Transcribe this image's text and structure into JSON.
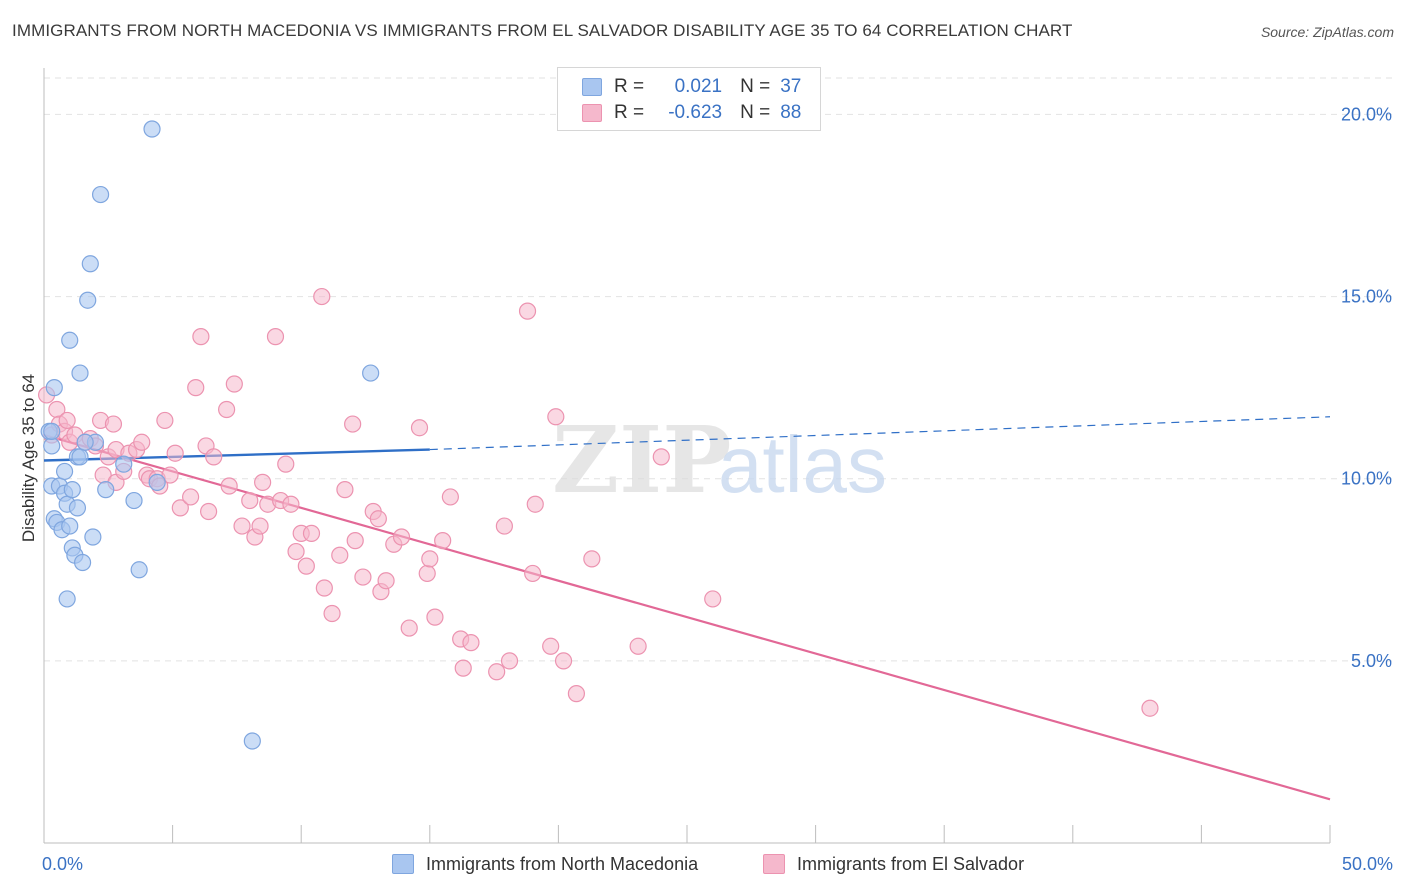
{
  "title": "IMMIGRANTS FROM NORTH MACEDONIA VS IMMIGRANTS FROM EL SALVADOR DISABILITY AGE 35 TO 64 CORRELATION CHART",
  "source": "Source: ZipAtlas.com",
  "legend": {
    "r_label": "R =",
    "n_label": "N =",
    "rows": [
      {
        "r": "0.021",
        "n": "37"
      },
      {
        "r": "-0.623",
        "n": "88"
      }
    ]
  },
  "colors": {
    "blue_fill": "#a9c6f0",
    "blue_stroke": "#7fa6df",
    "blue_line": "#2f6fc7",
    "pink_fill": "#f5b8cc",
    "pink_stroke": "#ec93b0",
    "pink_line": "#e26896",
    "axis_label": "#3a72c4",
    "grid": "#e2e2e2"
  },
  "chart_data": {
    "type": "scatter",
    "ylabel": "Disability Age 35 to 64",
    "xlim": [
      0,
      50
    ],
    "ylim": [
      0,
      21
    ],
    "x_ticks": [
      {
        "value": 0,
        "label": "0.0%"
      },
      {
        "value": 50,
        "label": "50.0%"
      }
    ],
    "y_ticks": [
      {
        "value": 5,
        "label": "5.0%"
      },
      {
        "value": 10,
        "label": "10.0%"
      },
      {
        "value": 15,
        "label": "15.0%"
      },
      {
        "value": 20,
        "label": "20.0%"
      }
    ],
    "watermark": "ZIPatlas",
    "series": [
      {
        "name": "Immigrants from North Macedonia",
        "color": "blue",
        "points": [
          [
            0.2,
            11.3
          ],
          [
            0.3,
            9.8
          ],
          [
            0.3,
            10.9
          ],
          [
            0.3,
            11.3
          ],
          [
            0.4,
            12.5
          ],
          [
            0.4,
            8.9
          ],
          [
            0.5,
            8.8
          ],
          [
            0.6,
            9.8
          ],
          [
            0.7,
            8.6
          ],
          [
            0.8,
            10.2
          ],
          [
            0.8,
            9.6
          ],
          [
            0.9,
            9.3
          ],
          [
            0.9,
            6.7
          ],
          [
            1.0,
            13.8
          ],
          [
            1.0,
            8.7
          ],
          [
            1.1,
            9.7
          ],
          [
            1.1,
            8.1
          ],
          [
            1.2,
            7.9
          ],
          [
            1.3,
            10.6
          ],
          [
            1.3,
            9.2
          ],
          [
            1.4,
            10.6
          ],
          [
            1.4,
            12.9
          ],
          [
            1.5,
            7.7
          ],
          [
            1.7,
            14.9
          ],
          [
            1.8,
            15.9
          ],
          [
            1.9,
            8.4
          ],
          [
            2.0,
            11.0
          ],
          [
            2.2,
            17.8
          ],
          [
            2.4,
            9.7
          ],
          [
            3.1,
            10.4
          ],
          [
            3.5,
            9.4
          ],
          [
            3.7,
            7.5
          ],
          [
            4.2,
            19.6
          ],
          [
            4.4,
            9.9
          ],
          [
            8.1,
            2.8
          ],
          [
            12.7,
            12.9
          ],
          [
            1.6,
            11.0
          ]
        ],
        "trend_solid": [
          [
            0,
            10.5
          ],
          [
            15,
            10.8
          ]
        ],
        "trend_dashed": [
          [
            15,
            10.8
          ],
          [
            50,
            11.7
          ]
        ]
      },
      {
        "name": "Immigrants from El Salvador",
        "color": "pink",
        "points": [
          [
            0.1,
            12.3
          ],
          [
            0.3,
            11.2
          ],
          [
            0.5,
            11.9
          ],
          [
            0.6,
            11.5
          ],
          [
            0.8,
            11.3
          ],
          [
            0.9,
            11.6
          ],
          [
            1.0,
            11.0
          ],
          [
            1.2,
            11.2
          ],
          [
            1.6,
            11.0
          ],
          [
            1.8,
            11.1
          ],
          [
            2.0,
            10.9
          ],
          [
            2.2,
            11.6
          ],
          [
            2.3,
            10.1
          ],
          [
            2.5,
            10.6
          ],
          [
            2.7,
            11.5
          ],
          [
            2.8,
            10.8
          ],
          [
            2.8,
            9.9
          ],
          [
            3.1,
            10.2
          ],
          [
            3.3,
            10.7
          ],
          [
            3.6,
            10.8
          ],
          [
            3.8,
            11.0
          ],
          [
            4.0,
            10.1
          ],
          [
            4.1,
            10.0
          ],
          [
            4.4,
            10.0
          ],
          [
            4.5,
            9.8
          ],
          [
            4.7,
            11.6
          ],
          [
            4.9,
            10.1
          ],
          [
            5.1,
            10.7
          ],
          [
            5.3,
            9.2
          ],
          [
            5.7,
            9.5
          ],
          [
            5.9,
            12.5
          ],
          [
            6.1,
            13.9
          ],
          [
            6.3,
            10.9
          ],
          [
            6.4,
            9.1
          ],
          [
            6.6,
            10.6
          ],
          [
            7.1,
            11.9
          ],
          [
            7.2,
            9.8
          ],
          [
            7.4,
            12.6
          ],
          [
            7.7,
            8.7
          ],
          [
            8.0,
            9.4
          ],
          [
            8.2,
            8.4
          ],
          [
            8.4,
            8.7
          ],
          [
            8.5,
            9.9
          ],
          [
            8.7,
            9.3
          ],
          [
            9.0,
            13.9
          ],
          [
            9.2,
            9.4
          ],
          [
            9.4,
            10.4
          ],
          [
            9.6,
            9.3
          ],
          [
            9.8,
            8.0
          ],
          [
            10.0,
            8.5
          ],
          [
            10.2,
            7.6
          ],
          [
            10.4,
            8.5
          ],
          [
            10.8,
            15.0
          ],
          [
            10.9,
            7.0
          ],
          [
            11.2,
            6.3
          ],
          [
            11.5,
            7.9
          ],
          [
            11.7,
            9.7
          ],
          [
            12.0,
            11.5
          ],
          [
            12.1,
            8.3
          ],
          [
            12.4,
            7.3
          ],
          [
            12.8,
            9.1
          ],
          [
            13.0,
            8.9
          ],
          [
            13.1,
            6.9
          ],
          [
            13.3,
            7.2
          ],
          [
            13.6,
            8.2
          ],
          [
            13.9,
            8.4
          ],
          [
            14.2,
            5.9
          ],
          [
            14.6,
            11.4
          ],
          [
            14.9,
            7.4
          ],
          [
            15.0,
            7.8
          ],
          [
            15.2,
            6.2
          ],
          [
            15.5,
            8.3
          ],
          [
            15.8,
            9.5
          ],
          [
            16.2,
            5.6
          ],
          [
            16.3,
            4.8
          ],
          [
            16.6,
            5.5
          ],
          [
            17.6,
            4.7
          ],
          [
            17.9,
            8.7
          ],
          [
            18.1,
            5.0
          ],
          [
            18.8,
            14.6
          ],
          [
            19.0,
            7.4
          ],
          [
            19.1,
            9.3
          ],
          [
            19.7,
            5.4
          ],
          [
            19.9,
            11.7
          ],
          [
            20.2,
            5.0
          ],
          [
            20.7,
            4.1
          ],
          [
            21.3,
            7.8
          ],
          [
            23.1,
            5.4
          ]
        ],
        "extra_points": [
          [
            24.0,
            10.6
          ],
          [
            26.0,
            6.7
          ],
          [
            43.0,
            3.7
          ]
        ],
        "trend": [
          [
            0,
            11.2
          ],
          [
            50,
            1.2
          ]
        ]
      }
    ]
  },
  "bottom_legend": [
    {
      "label": "Immigrants from North Macedonia"
    },
    {
      "label": "Immigrants from El Salvador"
    }
  ]
}
